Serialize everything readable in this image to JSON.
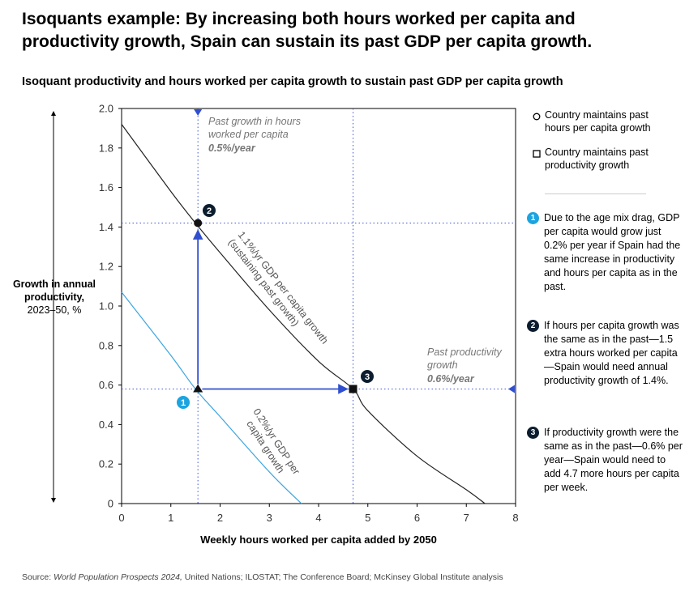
{
  "header": {
    "title": "Isoquants example: By increasing both hours worked per capita and productivity growth, Spain can sustain its past GDP per capita growth.",
    "subtitle": "Isoquant productivity and hours worked per capita growth to sustain past GDP per capita growth"
  },
  "y_axis_label": {
    "bold": "Growth in annual productivity,",
    "rest": "2023–50, %"
  },
  "source": {
    "prefix": "Source: ",
    "italic": "World Population Prospects 2024,",
    "rest": " United Nations; ILOSTAT; The Conference Board; McKinsey Global Institute analysis"
  },
  "legend": [
    {
      "symbol": "circle",
      "label": "Country maintains past hours per capita growth"
    },
    {
      "symbol": "square",
      "label": "Country maintains past productivity growth"
    }
  ],
  "notes": [
    {
      "number": "1",
      "text": "Due to the age mix drag, GDP per capita would grow just 0.2% per year if Spain had the same increase in productivity and hours per capita as in the past."
    },
    {
      "number": "2",
      "text": "If hours per capita growth was the same as in the past—1.5 extra hours worked per capita—Spain would need annual productivity growth of 1.4%."
    },
    {
      "number": "3",
      "text": "If productivity growth were the same as in the past—0.6% per year—Spain would need to add 4.7 more hours per capita per week."
    }
  ],
  "colors": {
    "dark_line": "#222222",
    "light_line": "#3aa5df",
    "arrow": "#2f4fd0",
    "dotted": "#3b55d6",
    "badge1": "#1ba4e0",
    "badge_dark": "#0b1d2e",
    "annotation": "#777777"
  },
  "chart_data": {
    "type": "line",
    "xlabel": "Weekly hours worked per capita added by 2050",
    "ylabel": "Growth in annual productivity, 2023–50, %",
    "xlim": [
      0,
      8
    ],
    "ylim": [
      0,
      2.0
    ],
    "x_ticks": [
      "0",
      "1",
      "2",
      "3",
      "4",
      "5",
      "6",
      "7",
      "8"
    ],
    "y_ticks": [
      "0",
      "0.2",
      "0.4",
      "0.6",
      "0.8",
      "1.0",
      "1.2",
      "1.4",
      "1.6",
      "1.8",
      "2.0"
    ],
    "series": [
      {
        "name": "1.1%/yr GDP per capita growth (sustaining past growth)",
        "x": [
          0,
          1,
          1.5,
          2,
          3,
          4,
          4.7,
          5,
          6,
          7,
          7.38
        ],
        "y": [
          1.92,
          1.58,
          1.42,
          1.27,
          0.98,
          0.72,
          0.58,
          0.47,
          0.24,
          0.07,
          0
        ]
      },
      {
        "name": "0.2%/yr GDP per capita growth",
        "x": [
          0,
          1,
          1.5,
          2,
          3,
          3.65
        ],
        "y": [
          1.07,
          0.75,
          0.58,
          0.44,
          0.16,
          0
        ]
      }
    ],
    "curve_labels": [
      {
        "line1": "1.1%/yr GDP per capita growth",
        "line2": "(sustaining past growth)"
      },
      {
        "line1": "0.2%/yr GDP per",
        "line2": "capita growth"
      }
    ],
    "reference_lines": {
      "past_hours": {
        "x": 1.55,
        "label1": "Past growth in hours",
        "label2": "worked per capita",
        "value": "0.5%/year"
      },
      "past_productivity": {
        "y": 0.58,
        "label1": "Past productivity",
        "label2": "growth",
        "value": "0.6%/year"
      },
      "point2_hline": {
        "y": 1.42
      },
      "point3_vline": {
        "x": 4.7
      }
    },
    "points": [
      {
        "id": "1",
        "marker": "triangle",
        "x": 1.55,
        "y": 0.58
      },
      {
        "id": "2",
        "marker": "circle",
        "x": 1.55,
        "y": 1.42
      },
      {
        "id": "3",
        "marker": "square",
        "x": 4.7,
        "y": 0.58
      }
    ]
  }
}
